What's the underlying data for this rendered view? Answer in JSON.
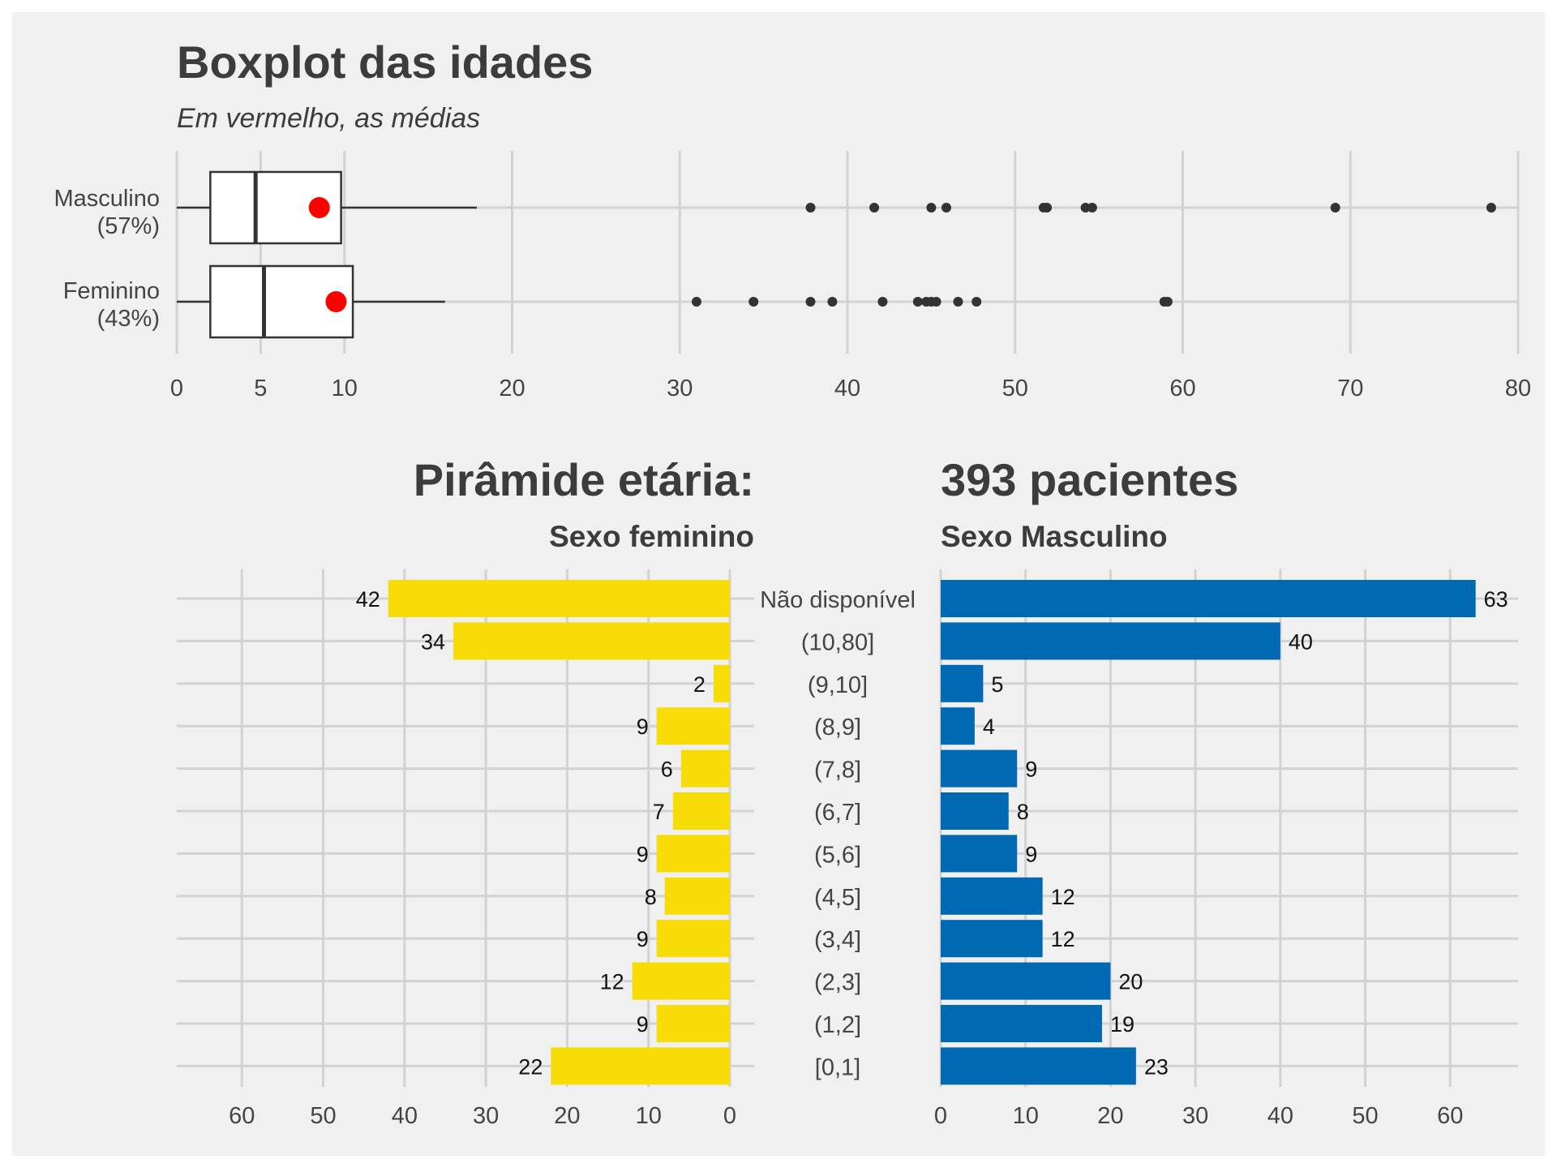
{
  "colors": {
    "background": "#f0f0f0",
    "panel": "#f0f0f0",
    "grid": "#d2d2d2",
    "text": "#3c3c3c",
    "box_fill": "#ffffff",
    "box_stroke": "#333333",
    "mean": "#ff0000",
    "outlier": "#333333",
    "female": "#f7dc08",
    "male": "#0069b4"
  },
  "chart_data": [
    {
      "type": "boxplot",
      "title": "Boxplot das idades",
      "subtitle": "Em vermelho, as médias",
      "orientation": "horizontal",
      "xlim": [
        0,
        80
      ],
      "xticks": [
        0,
        5,
        10,
        20,
        30,
        40,
        50,
        60,
        70,
        80
      ],
      "grid": true,
      "groups": [
        {
          "label": "Masculino",
          "share": "(57%)",
          "whisker_low": 0,
          "q1": 2,
          "median": 4.7,
          "q3": 9.8,
          "whisker_high": 17.9,
          "mean": 8.5,
          "outliers": [
            37.8,
            41.6,
            45.0,
            45.9,
            51.7,
            51.9,
            54.2,
            54.6,
            69.1,
            78.4
          ]
        },
        {
          "label": "Feminino",
          "share": "(43%)",
          "whisker_low": 0,
          "q1": 2,
          "median": 5.2,
          "q3": 10.5,
          "whisker_high": 16.0,
          "mean": 9.5,
          "outliers": [
            31.0,
            34.4,
            37.8,
            39.1,
            42.1,
            44.2,
            44.7,
            45.0,
            45.3,
            46.6,
            47.7,
            58.9,
            59.1
          ]
        }
      ]
    },
    {
      "type": "bar",
      "title": "Pirâmide etária:",
      "subtitle": "Sexo feminino",
      "orientation": "horizontal",
      "direction": "reversed",
      "categories": [
        "Não disponível",
        "(10,80]",
        "(9,10]",
        "(8,9]",
        "(7,8]",
        "(6,7]",
        "(5,6]",
        "(4,5]",
        "(3,4]",
        "(2,3]",
        "(1,2]",
        "[0,1]"
      ],
      "values": [
        42,
        34,
        2,
        9,
        6,
        7,
        9,
        8,
        9,
        12,
        9,
        22
      ],
      "xlim": [
        0,
        68
      ],
      "xticks": [
        60,
        50,
        40,
        30,
        20,
        10,
        0
      ],
      "grid": true
    },
    {
      "type": "bar",
      "title": "393 pacientes",
      "subtitle": "Sexo Masculino",
      "orientation": "horizontal",
      "categories": [
        "Não disponível",
        "(10,80]",
        "(9,10]",
        "(8,9]",
        "(7,8]",
        "(6,7]",
        "(5,6]",
        "(4,5]",
        "(3,4]",
        "(2,3]",
        "(1,2]",
        "[0,1]"
      ],
      "values": [
        63,
        40,
        5,
        4,
        9,
        8,
        9,
        12,
        12,
        20,
        19,
        23
      ],
      "xlim": [
        0,
        68
      ],
      "xticks": [
        0,
        10,
        20,
        30,
        40,
        50,
        60
      ],
      "grid": true
    }
  ]
}
